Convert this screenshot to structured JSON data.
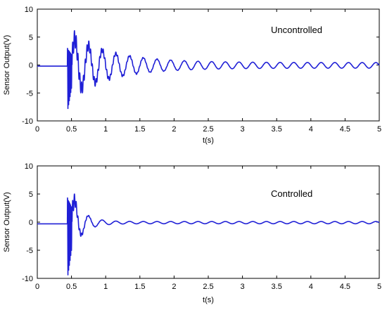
{
  "chart_data": [
    {
      "type": "line",
      "annotation": "Uncontrolled",
      "xlabel": "t(s)",
      "ylabel": "Sensor Output(V)",
      "xlim": [
        0,
        5
      ],
      "ylim": [
        -10,
        10
      ],
      "xticks": [
        "0",
        "0.5",
        "1",
        "1.5",
        "2",
        "2.5",
        "3",
        "3.5",
        "4",
        "4.5",
        "5"
      ],
      "yticks": [
        "10",
        "5",
        "0",
        "-5",
        "-10"
      ],
      "grid": false,
      "color": "#1f1fd6",
      "signal": {
        "impulse_t": 0.45,
        "spike_min": -8.3,
        "spike_max": 3.6,
        "peak": 5.0,
        "frequency_hz": 5.0,
        "decay_rate": 1.6,
        "steady_amplitude": 0.5
      },
      "series": [
        {
          "x": [
            0,
            0.43,
            0.45,
            0.46,
            0.47,
            0.48,
            0.5,
            0.55,
            0.6,
            0.65,
            0.7,
            0.75,
            0.8,
            0.85,
            0.9,
            0.95,
            1.0,
            1.1,
            1.2,
            1.3,
            1.4,
            1.5,
            2.0,
            2.5,
            3.0,
            3.5,
            4.0,
            4.5,
            5.0
          ],
          "values": [
            -0.2,
            -0.2,
            3.6,
            -8.3,
            -6.0,
            2.5,
            -4.0,
            4.5,
            5.0,
            1.0,
            -4.0,
            -3.0,
            3.0,
            1.0,
            -2.5,
            -1.5,
            2.2,
            -1.8,
            1.6,
            -1.2,
            1.1,
            0.9,
            0.7,
            0.6,
            0.5,
            0.5,
            0.5,
            0.5,
            0.4
          ]
        }
      ]
    },
    {
      "type": "line",
      "annotation": "Controlled",
      "xlabel": "t(s)",
      "ylabel": "Sensor Output(V)",
      "xlim": [
        0,
        5
      ],
      "ylim": [
        -10,
        10
      ],
      "xticks": [
        "0",
        "0.5",
        "1",
        "1.5",
        "2",
        "2.5",
        "3",
        "3.5",
        "4",
        "4.5",
        "5"
      ],
      "yticks": [
        "10",
        "5",
        "0",
        "-5",
        "-10"
      ],
      "grid": false,
      "color": "#1f1fd6",
      "signal": {
        "impulse_t": 0.45,
        "spike_min": -10,
        "spike_max": 5.2,
        "peak": 5.0,
        "frequency_hz": 5.0,
        "decay_rate": 6.5,
        "steady_amplitude": 0.2
      },
      "series": [
        {
          "x": [
            0,
            0.43,
            0.45,
            0.46,
            0.47,
            0.48,
            0.5,
            0.55,
            0.6,
            0.65,
            0.7,
            0.75,
            0.8,
            0.85,
            0.9,
            0.95,
            1.0,
            1.2,
            1.5,
            2.0,
            3.0,
            4.0,
            5.0
          ],
          "values": [
            -0.3,
            -0.3,
            5.2,
            -10,
            -7.0,
            3.0,
            -6.0,
            4.0,
            5.0,
            0.5,
            -3.5,
            -2.0,
            2.5,
            -0.5,
            -1.5,
            -0.8,
            0.6,
            0.3,
            -0.2,
            0.2,
            0.1,
            0.1,
            0.0
          ]
        }
      ]
    }
  ]
}
